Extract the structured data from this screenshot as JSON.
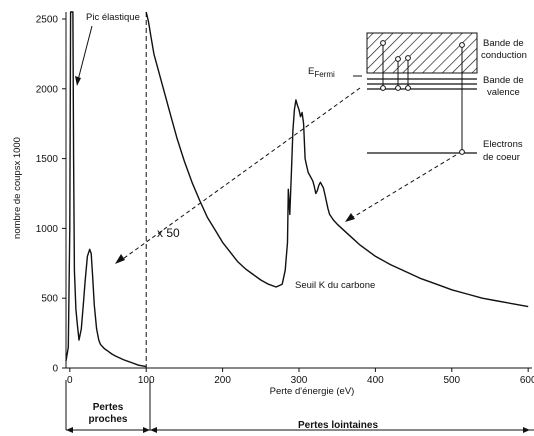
{
  "chart_data": {
    "type": "line",
    "title": "",
    "xlabel": "Perte d'énergie (eV)",
    "ylabel": "nombre de coupsx 1000",
    "xlim": [
      -5,
      605
    ],
    "ylim": [
      0,
      2550
    ],
    "x_ticks": [
      0,
      100,
      200,
      300,
      400,
      500,
      600
    ],
    "y_ticks": [
      0,
      500,
      1000,
      1500,
      2000,
      2500
    ],
    "grid": false,
    "divider_x": 100,
    "series": [
      {
        "segment": "pertes proches",
        "x": [
          -5,
          -2,
          0,
          1,
          2,
          3,
          4,
          5,
          6,
          8,
          10,
          12,
          15,
          18,
          20,
          23,
          26,
          28,
          30,
          32,
          35,
          38,
          40,
          45,
          50,
          55,
          60,
          70,
          80,
          90,
          100
        ],
        "y": [
          50,
          150,
          1000,
          2550,
          2550,
          2550,
          2550,
          1500,
          700,
          420,
          300,
          200,
          280,
          480,
          620,
          800,
          850,
          820,
          650,
          450,
          280,
          200,
          170,
          140,
          120,
          100,
          85,
          60,
          40,
          20,
          10
        ]
      },
      {
        "segment": "pertes lointaines",
        "x": [
          100,
          103,
          106,
          110,
          120,
          130,
          140,
          150,
          160,
          170,
          180,
          190,
          200,
          210,
          220,
          230,
          240,
          250,
          260,
          270,
          278,
          282,
          285,
          286,
          288,
          290,
          292,
          294,
          296,
          298,
          300,
          302,
          304,
          306,
          308,
          310,
          312,
          315,
          318,
          320,
          322,
          324,
          326,
          328,
          330,
          332,
          334,
          336,
          338,
          340,
          345,
          350,
          360,
          370,
          380,
          400,
          420,
          440,
          460,
          480,
          500,
          520,
          540,
          560,
          580,
          600
        ],
        "y": [
          2550,
          2480,
          2380,
          2250,
          2050,
          1850,
          1650,
          1480,
          1330,
          1200,
          1080,
          990,
          900,
          830,
          760,
          710,
          670,
          630,
          600,
          580,
          600,
          700,
          900,
          1280,
          1100,
          1400,
          1700,
          1850,
          1920,
          1880,
          1850,
          1800,
          1830,
          1750,
          1500,
          1450,
          1400,
          1370,
          1340,
          1300,
          1250,
          1270,
          1310,
          1330,
          1310,
          1290,
          1240,
          1190,
          1140,
          1100,
          1060,
          1030,
          980,
          930,
          880,
          800,
          740,
          690,
          640,
          600,
          560,
          530,
          500,
          480,
          460,
          440
        ]
      }
    ],
    "annotations": {
      "peak": "Pic élastique",
      "scale": "x 50",
      "carbon_edge": "Seuil K du carbone",
      "fermi": "E",
      "fermi_sub": "Fermi",
      "conduction": [
        "Bande de",
        "conduction"
      ],
      "valence": [
        "Bande de",
        "valence"
      ],
      "core": [
        "Electrons",
        "de coeur"
      ],
      "near_losses": [
        "Pertes",
        "proches"
      ],
      "far_losses": "Pertes lointaines"
    }
  }
}
